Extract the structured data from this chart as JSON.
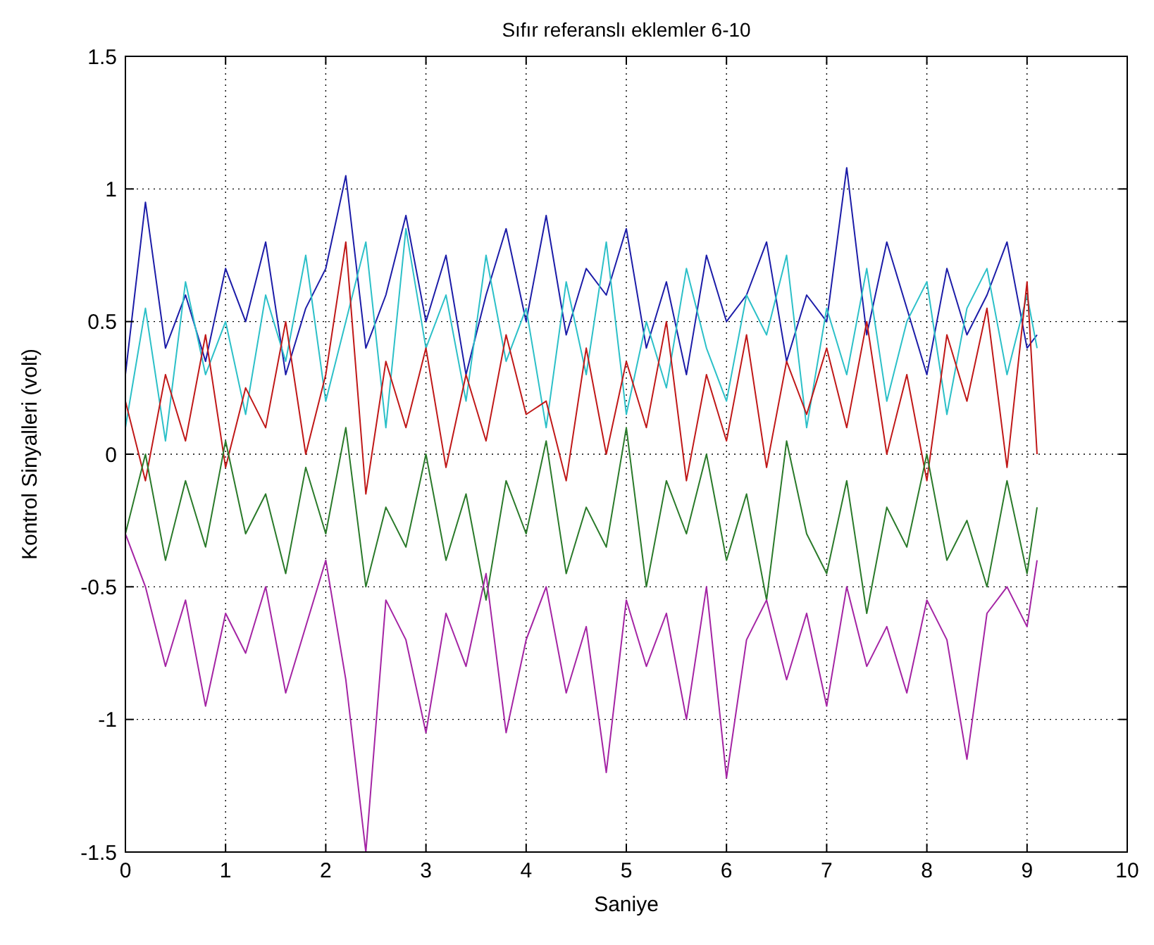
{
  "chart_data": {
    "type": "line",
    "title": "Sıfır referanslı eklemler 6-10",
    "xlabel": "Saniye",
    "ylabel": "Kontrol Sinyalleri (volt)",
    "x": [
      0,
      0.2,
      0.4,
      0.6,
      0.8,
      1,
      1.2,
      1.4,
      1.6,
      1.8,
      2,
      2.2,
      2.4,
      2.6,
      2.8,
      3,
      3.2,
      3.4,
      3.6,
      3.8,
      4,
      4.2,
      4.4,
      4.6,
      4.8,
      5,
      5.2,
      5.4,
      5.6,
      5.8,
      6,
      6.2,
      6.4,
      6.6,
      6.8,
      7,
      7.2,
      7.4,
      7.6,
      7.8,
      8,
      8.2,
      8.4,
      8.6,
      8.8,
      9,
      9.1
    ],
    "series": [
      {
        "color": "#1c1ca8",
        "values": [
          0.3,
          0.95,
          0.4,
          0.6,
          0.35,
          0.7,
          0.5,
          0.8,
          0.3,
          0.55,
          0.7,
          1.05,
          0.4,
          0.6,
          0.9,
          0.5,
          0.75,
          0.3,
          0.6,
          0.85,
          0.5,
          0.9,
          0.45,
          0.7,
          0.6,
          0.85,
          0.4,
          0.65,
          0.3,
          0.75,
          0.5,
          0.6,
          0.8,
          0.35,
          0.6,
          0.5,
          1.08,
          0.45,
          0.8,
          0.55,
          0.3,
          0.7,
          0.45,
          0.6,
          0.8,
          0.4,
          0.45
        ]
      },
      {
        "color": "#2cc0c8",
        "values": [
          0.1,
          0.55,
          0.05,
          0.65,
          0.3,
          0.5,
          0.15,
          0.6,
          0.35,
          0.75,
          0.2,
          0.5,
          0.8,
          0.1,
          0.85,
          0.4,
          0.6,
          0.2,
          0.75,
          0.35,
          0.55,
          0.1,
          0.65,
          0.3,
          0.8,
          0.15,
          0.5,
          0.25,
          0.7,
          0.4,
          0.2,
          0.6,
          0.45,
          0.75,
          0.1,
          0.55,
          0.3,
          0.7,
          0.2,
          0.5,
          0.65,
          0.15,
          0.55,
          0.7,
          0.3,
          0.6,
          0.4
        ]
      },
      {
        "color": "#c01818",
        "values": [
          0.2,
          -0.1,
          0.3,
          0.05,
          0.45,
          -0.05,
          0.25,
          0.1,
          0.5,
          0,
          0.3,
          0.8,
          -0.15,
          0.35,
          0.1,
          0.4,
          -0.05,
          0.3,
          0.05,
          0.45,
          0.15,
          0.2,
          -0.1,
          0.4,
          0,
          0.35,
          0.1,
          0.5,
          -0.1,
          0.3,
          0.05,
          0.45,
          -0.05,
          0.35,
          0.15,
          0.4,
          0.1,
          0.5,
          0,
          0.3,
          -0.1,
          0.45,
          0.2,
          0.55,
          -0.05,
          0.65,
          0
        ]
      },
      {
        "color": "#2a7a2a",
        "values": [
          -0.3,
          0,
          -0.4,
          -0.1,
          -0.35,
          0.05,
          -0.3,
          -0.15,
          -0.45,
          -0.05,
          -0.3,
          0.1,
          -0.5,
          -0.2,
          -0.35,
          0,
          -0.4,
          -0.15,
          -0.55,
          -0.1,
          -0.3,
          0.05,
          -0.45,
          -0.2,
          -0.35,
          0.1,
          -0.5,
          -0.1,
          -0.3,
          0,
          -0.4,
          -0.15,
          -0.55,
          0.05,
          -0.3,
          -0.45,
          -0.1,
          -0.6,
          -0.2,
          -0.35,
          0,
          -0.4,
          -0.25,
          -0.5,
          -0.1,
          -0.45,
          -0.2
        ]
      },
      {
        "color": "#a424a4",
        "values": [
          -0.3,
          -0.5,
          -0.8,
          -0.55,
          -0.95,
          -0.6,
          -0.75,
          -0.5,
          -0.9,
          -0.65,
          -0.4,
          -0.85,
          -1.5,
          -0.55,
          -0.7,
          -1.05,
          -0.6,
          -0.8,
          -0.45,
          -1.05,
          -0.7,
          -0.5,
          -0.9,
          -0.65,
          -1.2,
          -0.55,
          -0.8,
          -0.6,
          -1,
          -0.5,
          -1.22,
          -0.7,
          -0.55,
          -0.85,
          -0.6,
          -0.95,
          -0.5,
          -0.8,
          -0.65,
          -0.9,
          -0.55,
          -0.7,
          -1.15,
          -0.6,
          -0.5,
          -0.65,
          -0.4
        ]
      }
    ],
    "xlim": [
      0,
      10
    ],
    "xticks": [
      0,
      1,
      2,
      3,
      4,
      5,
      6,
      7,
      8,
      9,
      10
    ],
    "ylim": [
      -1.5,
      1.5
    ],
    "yticks": [
      -1.5,
      -1,
      -0.5,
      0,
      0.5,
      1,
      1.5
    ],
    "grid": true,
    "line_style": "solid",
    "marker": "none"
  }
}
